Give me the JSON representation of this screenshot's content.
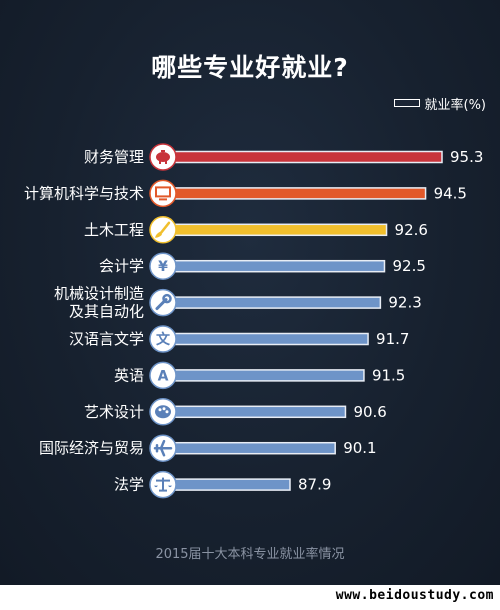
{
  "chart_data": {
    "type": "bar",
    "orientation": "horizontal",
    "title": "哪些专业好就业?",
    "legend": {
      "label": "就业率(%)",
      "position": "top-right"
    },
    "categories": [
      [
        "财务管理"
      ],
      [
        "计算机科学与技术"
      ],
      [
        "土木工程"
      ],
      [
        "会计学"
      ],
      [
        "机械设计制造",
        "及其自动化"
      ],
      [
        "汉语言文学"
      ],
      [
        "英语"
      ],
      [
        "艺术设计"
      ],
      [
        "国际经济与贸易"
      ],
      [
        "法学"
      ]
    ],
    "values": [
      95.3,
      94.5,
      92.6,
      92.5,
      92.3,
      91.7,
      91.5,
      90.6,
      90.1,
      87.9
    ],
    "value_labels": [
      "95.3",
      "94.5",
      "92.6",
      "92.5",
      "92.3",
      "91.7",
      "91.5",
      "90.6",
      "90.1",
      "87.9"
    ],
    "bar_colors": [
      "#c8343b",
      "#e2592a",
      "#f1bf2d",
      "#6e94c8",
      "#6e94c8",
      "#6e94c8",
      "#6e94c8",
      "#6e94c8",
      "#6e94c8",
      "#6e94c8"
    ],
    "icons": [
      "piggy-bank-icon",
      "monitor-icon",
      "brush-icon",
      "yen-icon",
      "wrench-icon",
      "wen-character-icon",
      "letter-a-icon",
      "palette-icon",
      "airplane-icon",
      "scales-icon"
    ],
    "icon_glyphs": [
      "",
      "",
      "",
      "¥",
      "",
      "文",
      "A",
      "",
      "",
      ""
    ],
    "footnote": "2015届十大本科专业就业率情况"
  },
  "watermark": "www.beidoustudy.com"
}
